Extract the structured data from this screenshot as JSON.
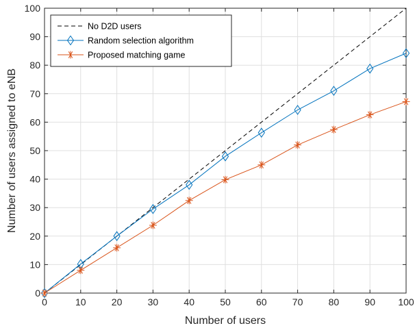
{
  "chart_data": {
    "type": "line",
    "xlabel": "Number of users",
    "ylabel": "Number of users assigned to eNB",
    "xlim": [
      0,
      100
    ],
    "ylim": [
      0,
      100
    ],
    "xticks": [
      0,
      10,
      20,
      30,
      40,
      50,
      60,
      70,
      80,
      90,
      100
    ],
    "yticks": [
      0,
      10,
      20,
      30,
      40,
      50,
      60,
      70,
      80,
      90,
      100
    ],
    "grid": true,
    "legend_position": "top-left",
    "x": [
      0,
      10,
      20,
      30,
      40,
      50,
      60,
      70,
      80,
      90,
      100
    ],
    "series": [
      {
        "name": "No D2D users",
        "values": [
          0,
          10,
          20,
          30,
          40,
          50,
          60,
          70,
          80,
          90,
          100
        ],
        "color": "#000000",
        "line_style": "dashed",
        "marker": "none"
      },
      {
        "name": "Random selection algorithm",
        "values": [
          0,
          10.2,
          20,
          29.5,
          38,
          48,
          56.3,
          64.3,
          71,
          78.8,
          84.2
        ],
        "color": "#0072BD",
        "line_style": "solid",
        "marker": "diamond"
      },
      {
        "name": "Proposed matching game",
        "values": [
          0,
          8,
          15.9,
          23.8,
          32.5,
          39.8,
          45,
          52,
          57.4,
          62.6,
          67.2
        ],
        "color": "#D95319",
        "line_style": "solid",
        "marker": "asterisk"
      }
    ]
  }
}
